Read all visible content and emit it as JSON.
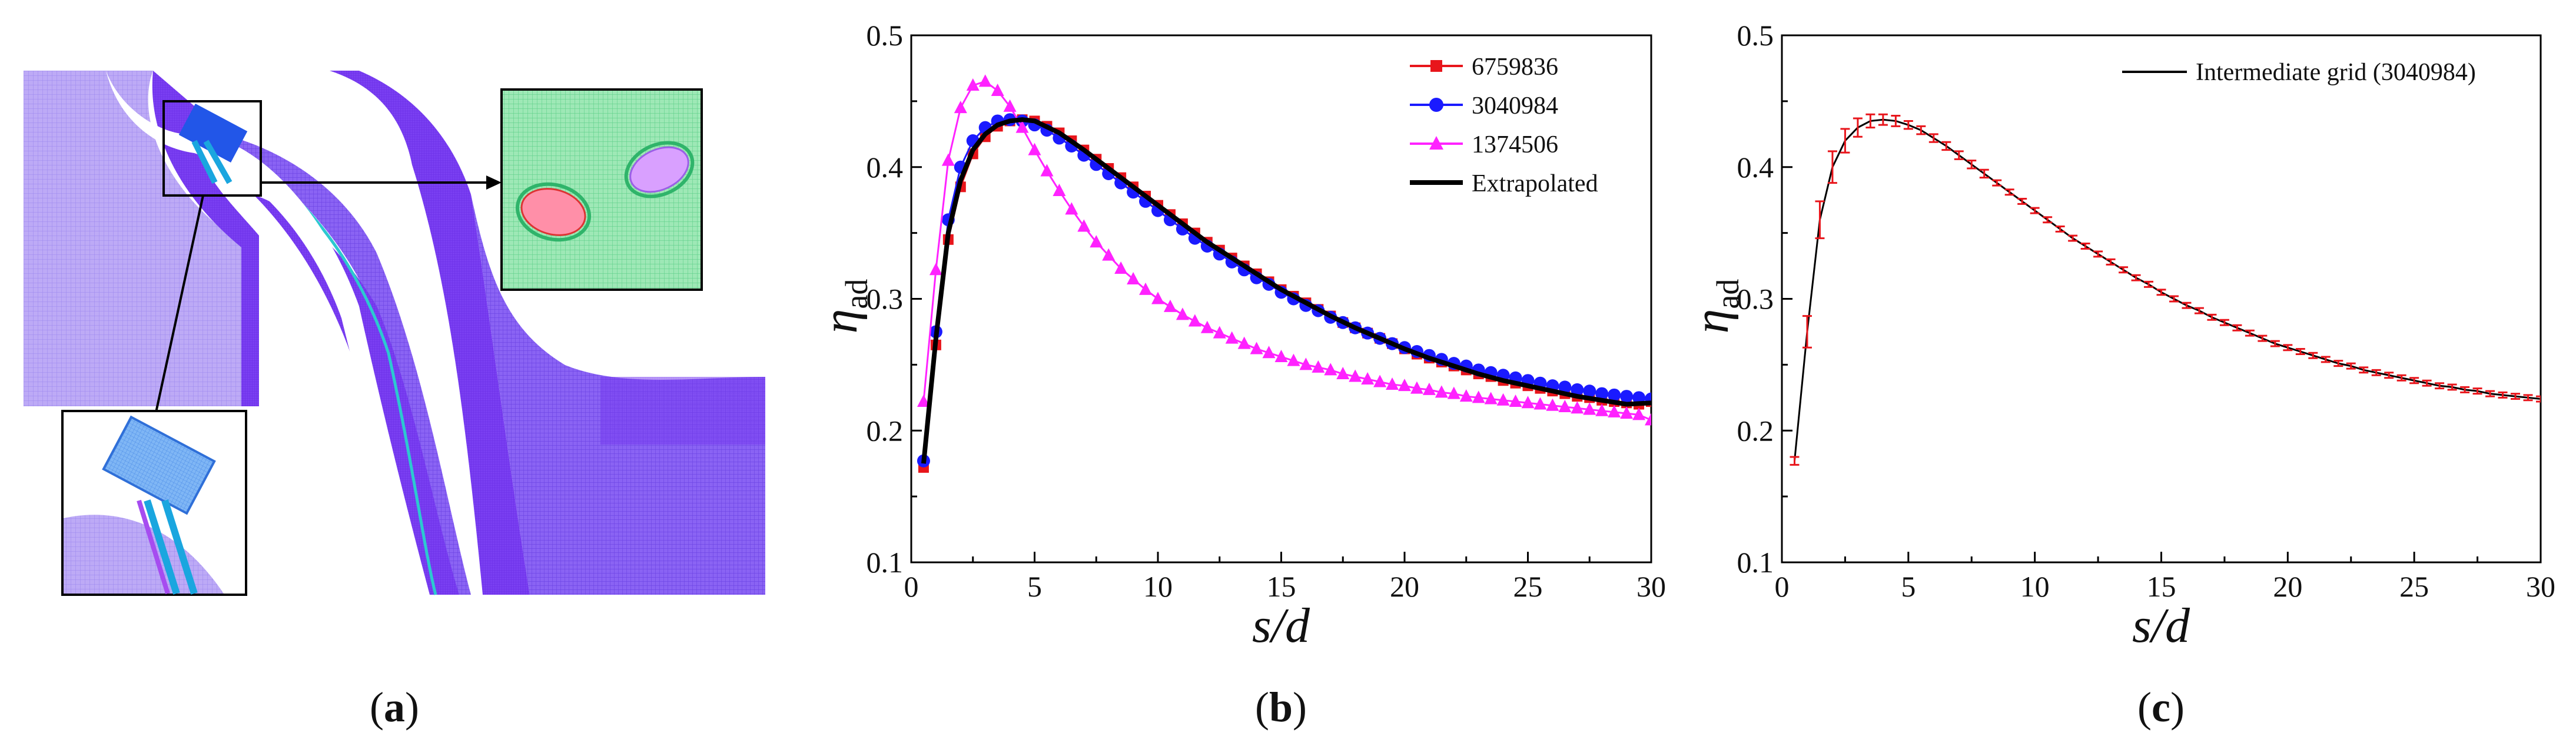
{
  "figure": {
    "panel_a_caption": "a",
    "panel_b_caption": "b",
    "panel_c_caption": "c",
    "panel_a_content": "computational mesh of film-cooled vane passage with zoomed insets"
  },
  "chart_data": [
    {
      "panel": "b",
      "type": "line",
      "title": "",
      "xlabel": "s/d",
      "ylabel": "η_ad",
      "xlim": [
        0,
        30
      ],
      "ylim": [
        0.1,
        0.5
      ],
      "xticks": [
        0,
        5,
        10,
        15,
        20,
        25,
        30
      ],
      "yticks": [
        0.1,
        0.2,
        0.3,
        0.4,
        0.5
      ],
      "legend_position": "top-right",
      "series": [
        {
          "name": "6759836",
          "color": "#e8151b",
          "marker": "square",
          "x": [
            0.5,
            1,
            1.5,
            2,
            2.5,
            3,
            3.5,
            4,
            4.5,
            5,
            5.5,
            6,
            6.5,
            7,
            7.5,
            8,
            8.5,
            9,
            9.5,
            10,
            10.5,
            11,
            11.5,
            12,
            12.5,
            13,
            13.5,
            14,
            14.5,
            15,
            15.5,
            16,
            16.5,
            17,
            17.5,
            18,
            18.5,
            19,
            19.5,
            20,
            20.5,
            21,
            21.5,
            22,
            22.5,
            23,
            23.5,
            24,
            24.5,
            25,
            25.5,
            26,
            26.5,
            27,
            27.5,
            28,
            28.5,
            29,
            29.5,
            30
          ],
          "y": [
            0.172,
            0.265,
            0.345,
            0.385,
            0.41,
            0.423,
            0.431,
            0.435,
            0.436,
            0.435,
            0.431,
            0.426,
            0.42,
            0.413,
            0.406,
            0.399,
            0.392,
            0.385,
            0.378,
            0.371,
            0.364,
            0.357,
            0.35,
            0.343,
            0.337,
            0.331,
            0.325,
            0.319,
            0.313,
            0.307,
            0.302,
            0.297,
            0.292,
            0.287,
            0.282,
            0.278,
            0.274,
            0.27,
            0.266,
            0.262,
            0.258,
            0.255,
            0.252,
            0.249,
            0.246,
            0.243,
            0.241,
            0.238,
            0.236,
            0.234,
            0.232,
            0.23,
            0.228,
            0.226,
            0.225,
            0.223,
            0.222,
            0.221,
            0.22,
            0.222
          ]
        },
        {
          "name": "3040984",
          "color": "#1a1aff",
          "marker": "circle",
          "x": [
            0.5,
            1,
            1.5,
            2,
            2.5,
            3,
            3.5,
            4,
            4.5,
            5,
            5.5,
            6,
            6.5,
            7,
            7.5,
            8,
            8.5,
            9,
            9.5,
            10,
            10.5,
            11,
            11.5,
            12,
            12.5,
            13,
            13.5,
            14,
            14.5,
            15,
            15.5,
            16,
            16.5,
            17,
            17.5,
            18,
            18.5,
            19,
            19.5,
            20,
            20.5,
            21,
            21.5,
            22,
            22.5,
            23,
            23.5,
            24,
            24.5,
            25,
            25.5,
            26,
            26.5,
            27,
            27.5,
            28,
            28.5,
            29,
            29.5,
            30
          ],
          "y": [
            0.177,
            0.275,
            0.36,
            0.4,
            0.42,
            0.43,
            0.435,
            0.436,
            0.435,
            0.432,
            0.428,
            0.422,
            0.416,
            0.409,
            0.402,
            0.395,
            0.388,
            0.381,
            0.374,
            0.367,
            0.36,
            0.353,
            0.346,
            0.34,
            0.334,
            0.328,
            0.322,
            0.316,
            0.311,
            0.305,
            0.3,
            0.295,
            0.291,
            0.286,
            0.282,
            0.278,
            0.274,
            0.27,
            0.266,
            0.263,
            0.26,
            0.257,
            0.254,
            0.251,
            0.249,
            0.246,
            0.244,
            0.242,
            0.24,
            0.238,
            0.236,
            0.234,
            0.233,
            0.231,
            0.23,
            0.228,
            0.227,
            0.226,
            0.225,
            0.224
          ]
        },
        {
          "name": "1374506",
          "color": "#ff22ff",
          "marker": "triangle",
          "x": [
            0.5,
            1,
            1.5,
            2,
            2.5,
            3,
            3.5,
            4,
            4.5,
            5,
            5.5,
            6,
            6.5,
            7,
            7.5,
            8,
            8.5,
            9,
            9.5,
            10,
            10.5,
            11,
            11.5,
            12,
            12.5,
            13,
            13.5,
            14,
            14.5,
            15,
            15.5,
            16,
            16.5,
            17,
            17.5,
            18,
            18.5,
            19,
            19.5,
            20,
            20.5,
            21,
            21.5,
            22,
            22.5,
            23,
            23.5,
            24,
            24.5,
            25,
            25.5,
            26,
            26.5,
            27,
            27.5,
            28,
            28.5,
            29,
            29.5,
            30
          ],
          "y": [
            0.222,
            0.322,
            0.405,
            0.445,
            0.462,
            0.465,
            0.458,
            0.446,
            0.43,
            0.413,
            0.397,
            0.382,
            0.368,
            0.355,
            0.343,
            0.333,
            0.323,
            0.315,
            0.307,
            0.3,
            0.294,
            0.288,
            0.283,
            0.278,
            0.274,
            0.27,
            0.266,
            0.262,
            0.259,
            0.256,
            0.253,
            0.25,
            0.248,
            0.246,
            0.243,
            0.241,
            0.239,
            0.237,
            0.235,
            0.234,
            0.232,
            0.231,
            0.229,
            0.228,
            0.226,
            0.225,
            0.224,
            0.223,
            0.222,
            0.221,
            0.22,
            0.219,
            0.218,
            0.217,
            0.216,
            0.215,
            0.214,
            0.213,
            0.212,
            0.208
          ]
        },
        {
          "name": "Extrapolated",
          "color": "#000000",
          "marker": "none",
          "x": [
            0.5,
            1,
            1.5,
            2,
            2.5,
            3,
            3.5,
            4,
            4.5,
            5,
            6,
            7,
            8,
            9,
            10,
            11,
            12,
            13,
            14,
            15,
            16,
            17,
            18,
            19,
            20,
            21,
            22,
            23,
            24,
            25,
            26,
            27,
            28,
            29,
            30
          ],
          "y": [
            0.175,
            0.27,
            0.35,
            0.39,
            0.413,
            0.425,
            0.432,
            0.435,
            0.436,
            0.435,
            0.426,
            0.413,
            0.399,
            0.385,
            0.371,
            0.357,
            0.343,
            0.331,
            0.319,
            0.307,
            0.297,
            0.287,
            0.278,
            0.27,
            0.262,
            0.255,
            0.249,
            0.243,
            0.238,
            0.234,
            0.23,
            0.226,
            0.223,
            0.22,
            0.221
          ]
        }
      ]
    },
    {
      "panel": "c",
      "type": "line",
      "title": "",
      "xlabel": "s/d",
      "ylabel": "η_ad",
      "xlim": [
        0,
        30
      ],
      "ylim": [
        0.1,
        0.5
      ],
      "xticks": [
        0,
        5,
        10,
        15,
        20,
        25,
        30
      ],
      "yticks": [
        0.1,
        0.2,
        0.3,
        0.4,
        0.5
      ],
      "legend_position": "top-right",
      "series": [
        {
          "name": "Intermediate grid (3040984)",
          "color": "#000000",
          "error_color": "#e8151b",
          "x": [
            0.5,
            1,
            1.5,
            2,
            2.5,
            3,
            3.5,
            4,
            4.5,
            5,
            5.5,
            6,
            6.5,
            7,
            7.5,
            8,
            8.5,
            9,
            9.5,
            10,
            10.5,
            11,
            11.5,
            12,
            12.5,
            13,
            13.5,
            14,
            14.5,
            15,
            15.5,
            16,
            16.5,
            17,
            17.5,
            18,
            18.5,
            19,
            19.5,
            20,
            20.5,
            21,
            21.5,
            22,
            22.5,
            23,
            23.5,
            24,
            24.5,
            25,
            25.5,
            26,
            26.5,
            27,
            27.5,
            28,
            28.5,
            29,
            29.5,
            30
          ],
          "y": [
            0.177,
            0.275,
            0.36,
            0.4,
            0.42,
            0.43,
            0.435,
            0.436,
            0.435,
            0.432,
            0.428,
            0.422,
            0.416,
            0.409,
            0.402,
            0.395,
            0.388,
            0.381,
            0.374,
            0.367,
            0.36,
            0.353,
            0.346,
            0.34,
            0.334,
            0.328,
            0.322,
            0.316,
            0.311,
            0.305,
            0.3,
            0.295,
            0.291,
            0.286,
            0.282,
            0.278,
            0.274,
            0.27,
            0.266,
            0.263,
            0.26,
            0.257,
            0.254,
            0.251,
            0.249,
            0.246,
            0.244,
            0.242,
            0.24,
            0.238,
            0.236,
            0.234,
            0.233,
            0.231,
            0.23,
            0.228,
            0.227,
            0.226,
            0.225,
            0.224
          ],
          "error": [
            0.003,
            0.012,
            0.014,
            0.012,
            0.009,
            0.007,
            0.005,
            0.004,
            0.004,
            0.003,
            0.003,
            0.003,
            0.003,
            0.003,
            0.003,
            0.003,
            0.002,
            0.002,
            0.002,
            0.002,
            0.002,
            0.002,
            0.002,
            0.002,
            0.002,
            0.002,
            0.002,
            0.002,
            0.002,
            0.002,
            0.002,
            0.002,
            0.002,
            0.002,
            0.002,
            0.002,
            0.002,
            0.002,
            0.002,
            0.002,
            0.002,
            0.002,
            0.002,
            0.002,
            0.002,
            0.002,
            0.002,
            0.002,
            0.002,
            0.002,
            0.002,
            0.002,
            0.002,
            0.002,
            0.002,
            0.002,
            0.002,
            0.002,
            0.002,
            0.002
          ]
        }
      ]
    }
  ]
}
